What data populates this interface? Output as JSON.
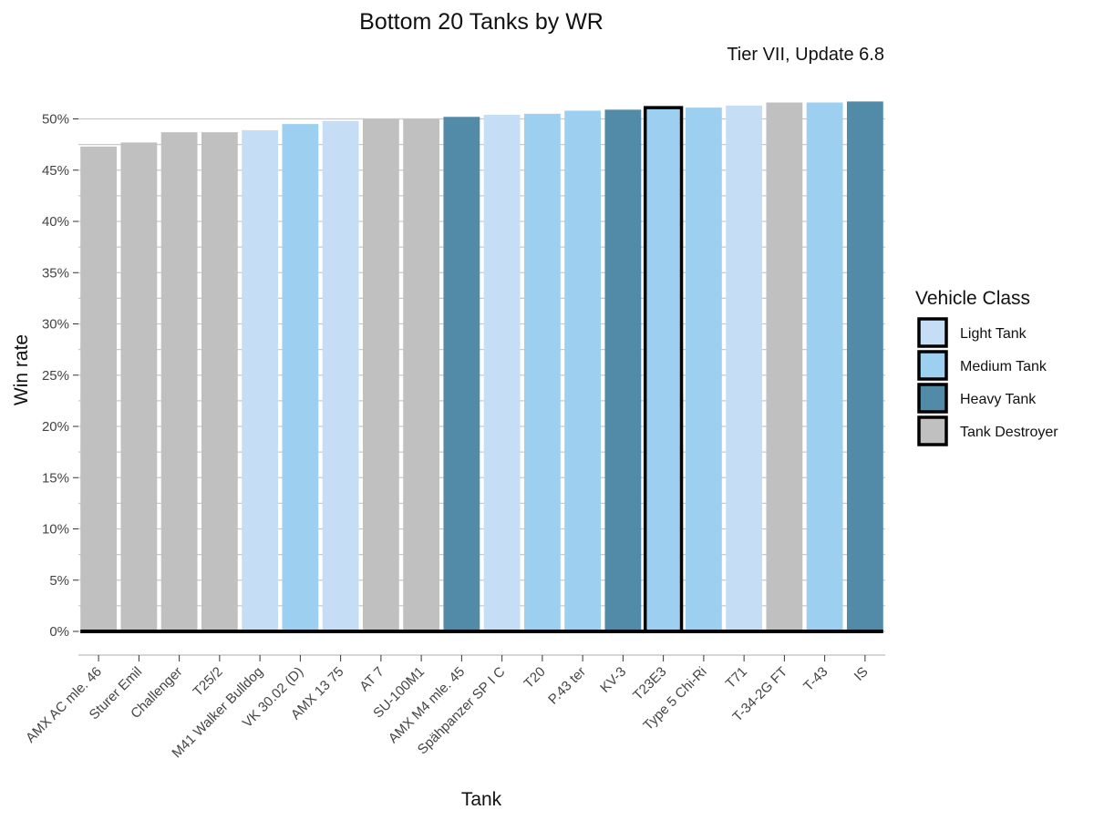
{
  "chart_data": {
    "type": "bar",
    "title": "Bottom 20 Tanks by WR",
    "subtitle": "Tier VII, Update 6.8",
    "xlabel": "Tank",
    "ylabel": "Win rate",
    "ylim": [
      0,
      0.52
    ],
    "y_ticks": [
      {
        "value": 0.0,
        "label": "0%"
      },
      {
        "value": 0.05,
        "label": "5%"
      },
      {
        "value": 0.1,
        "label": "10%"
      },
      {
        "value": 0.15,
        "label": "15%"
      },
      {
        "value": 0.2,
        "label": "20%"
      },
      {
        "value": 0.25,
        "label": "25%"
      },
      {
        "value": 0.3,
        "label": "30%"
      },
      {
        "value": 0.35,
        "label": "35%"
      },
      {
        "value": 0.4,
        "label": "40%"
      },
      {
        "value": 0.45,
        "label": "45%"
      },
      {
        "value": 0.5,
        "label": "50%"
      }
    ],
    "categories": [
      "AMX AC mle. 46",
      "Sturer Emil",
      "Challenger",
      "T25/2",
      "M41 Walker Bulldog",
      "VK 30.02 (D)",
      "AMX 13 75",
      "AT 7",
      "SU-100M1",
      "AMX M4 mle. 45",
      "Spähpanzer SP I C",
      "T20",
      "P.43 ter",
      "KV-3",
      "T23E3",
      "Type 5 Chi-Ri",
      "T71",
      "T-34-2G FT",
      "T-43",
      "IS"
    ],
    "values": [
      0.473,
      0.477,
      0.487,
      0.487,
      0.489,
      0.495,
      0.498,
      0.5,
      0.5,
      0.502,
      0.504,
      0.505,
      0.508,
      0.509,
      0.511,
      0.511,
      0.513,
      0.516,
      0.516,
      0.517
    ],
    "classes": [
      "Tank Destroyer",
      "Tank Destroyer",
      "Tank Destroyer",
      "Tank Destroyer",
      "Light Tank",
      "Medium Tank",
      "Light Tank",
      "Tank Destroyer",
      "Tank Destroyer",
      "Heavy Tank",
      "Light Tank",
      "Medium Tank",
      "Medium Tank",
      "Heavy Tank",
      "Medium Tank",
      "Medium Tank",
      "Light Tank",
      "Tank Destroyer",
      "Medium Tank",
      "Heavy Tank"
    ],
    "highlighted": "T23E3",
    "legend": {
      "title": "Vehicle Class",
      "placement": "right",
      "entries": [
        {
          "name": "Light Tank",
          "color": "#c6def5"
        },
        {
          "name": "Medium Tank",
          "color": "#9dcff1"
        },
        {
          "name": "Heavy Tank",
          "color": "#528ba8"
        },
        {
          "name": "Tank Destroyer",
          "color": "#c0c0c0"
        }
      ]
    },
    "grid": true
  }
}
